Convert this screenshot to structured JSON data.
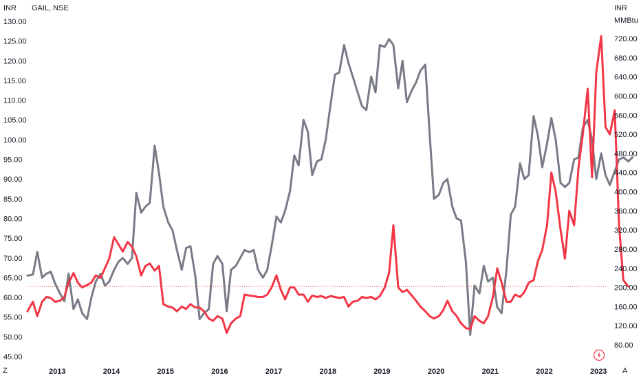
{
  "chart_data": {
    "type": "line",
    "title": "GAIL, NSE",
    "left_axis": {
      "label": "INR",
      "ylim": [
        45,
        130
      ],
      "ticks": [
        "130.00",
        "125.00",
        "120.00",
        "115.00",
        "110.00",
        "105.00",
        "100.00",
        "95.00",
        "90.00",
        "85.00",
        "80.00",
        "75.00",
        "70.00",
        "65.00",
        "60.00",
        "55.00",
        "50.00",
        "45.00"
      ]
    },
    "right_axis": {
      "label": "INR",
      "sublabel": "MMBtu",
      "ylim": [
        40,
        790
      ],
      "ticks": [
        "720.00",
        "680.00",
        "640.00",
        "600.00",
        "560.00",
        "520.00",
        "480.00",
        "440.00",
        "400.00",
        "360.00",
        "320.00",
        "280.00",
        "240.00",
        "200.00",
        "160.00",
        "120.00",
        "80.00"
      ]
    },
    "x_axis": {
      "ticks": [
        "2013",
        "2014",
        "2015",
        "2016",
        "2017",
        "2018",
        "2019",
        "2020",
        "2021",
        "2022",
        "2023"
      ],
      "start": 2012.45,
      "end": 2023.15
    },
    "series": [
      {
        "axis": "left",
        "color": "#787b86",
        "points": [
          [
            2012.45,
            65.5
          ],
          [
            2012.55,
            65.8
          ],
          [
            2012.63,
            71.5
          ],
          [
            2012.72,
            65.0
          ],
          [
            2012.8,
            66.0
          ],
          [
            2012.88,
            66.5
          ],
          [
            2012.96,
            63.5
          ],
          [
            2013.05,
            61.0
          ],
          [
            2013.13,
            59.0
          ],
          [
            2013.21,
            66.0
          ],
          [
            2013.3,
            57.0
          ],
          [
            2013.38,
            59.5
          ],
          [
            2013.46,
            56.0
          ],
          [
            2013.55,
            54.5
          ],
          [
            2013.63,
            60.0
          ],
          [
            2013.71,
            64.0
          ],
          [
            2013.8,
            66.0
          ],
          [
            2013.88,
            63.0
          ],
          [
            2013.96,
            64.0
          ],
          [
            2014.05,
            67.0
          ],
          [
            2014.13,
            69.0
          ],
          [
            2014.21,
            70.0
          ],
          [
            2014.3,
            68.5
          ],
          [
            2014.38,
            70.0
          ],
          [
            2014.46,
            86.5
          ],
          [
            2014.55,
            81.5
          ],
          [
            2014.63,
            83.0
          ],
          [
            2014.71,
            84.0
          ],
          [
            2014.8,
            98.5
          ],
          [
            2014.88,
            91.5
          ],
          [
            2014.96,
            83.0
          ],
          [
            2015.05,
            79.0
          ],
          [
            2015.13,
            77.0
          ],
          [
            2015.21,
            72.0
          ],
          [
            2015.3,
            67.0
          ],
          [
            2015.38,
            72.5
          ],
          [
            2015.46,
            73.0
          ],
          [
            2015.55,
            65.5
          ],
          [
            2015.63,
            54.5
          ],
          [
            2015.71,
            56.0
          ],
          [
            2015.8,
            57.0
          ],
          [
            2015.88,
            68.5
          ],
          [
            2015.96,
            70.5
          ],
          [
            2016.05,
            68.5
          ],
          [
            2016.13,
            56.5
          ],
          [
            2016.21,
            67.0
          ],
          [
            2016.3,
            68.0
          ],
          [
            2016.38,
            70.0
          ],
          [
            2016.46,
            72.0
          ],
          [
            2016.55,
            71.5
          ],
          [
            2016.63,
            72.0
          ],
          [
            2016.71,
            67.0
          ],
          [
            2016.8,
            65.0
          ],
          [
            2016.88,
            67.0
          ],
          [
            2016.96,
            73.0
          ],
          [
            2017.05,
            80.5
          ],
          [
            2017.13,
            79.0
          ],
          [
            2017.21,
            82.0
          ],
          [
            2017.3,
            87.0
          ],
          [
            2017.38,
            96.0
          ],
          [
            2017.46,
            93.5
          ],
          [
            2017.55,
            105.0
          ],
          [
            2017.63,
            102.0
          ],
          [
            2017.71,
            91.0
          ],
          [
            2017.8,
            94.5
          ],
          [
            2017.88,
            95.0
          ],
          [
            2017.96,
            100.0
          ],
          [
            2018.05,
            109.0
          ],
          [
            2018.13,
            116.5
          ],
          [
            2018.21,
            117.0
          ],
          [
            2018.3,
            124.0
          ],
          [
            2018.38,
            119.5
          ],
          [
            2018.46,
            116.0
          ],
          [
            2018.55,
            112.0
          ],
          [
            2018.63,
            108.5
          ],
          [
            2018.71,
            107.5
          ],
          [
            2018.8,
            116.0
          ],
          [
            2018.88,
            112.0
          ],
          [
            2018.96,
            124.0
          ],
          [
            2019.05,
            123.5
          ],
          [
            2019.13,
            125.5
          ],
          [
            2019.21,
            124.0
          ],
          [
            2019.3,
            113.0
          ],
          [
            2019.38,
            120.0
          ],
          [
            2019.46,
            109.5
          ],
          [
            2019.55,
            112.5
          ],
          [
            2019.63,
            114.5
          ],
          [
            2019.71,
            117.5
          ],
          [
            2019.8,
            119.0
          ],
          [
            2019.88,
            101.5
          ],
          [
            2019.96,
            85.0
          ],
          [
            2020.05,
            86.0
          ],
          [
            2020.13,
            89.0
          ],
          [
            2020.21,
            90.0
          ],
          [
            2020.3,
            83.0
          ],
          [
            2020.38,
            80.0
          ],
          [
            2020.46,
            79.5
          ],
          [
            2020.55,
            69.0
          ],
          [
            2020.63,
            50.5
          ],
          [
            2020.71,
            63.0
          ],
          [
            2020.8,
            61.0
          ],
          [
            2020.88,
            68.0
          ],
          [
            2020.96,
            64.0
          ],
          [
            2021.05,
            65.0
          ],
          [
            2021.13,
            57.5
          ],
          [
            2021.21,
            56.0
          ],
          [
            2021.3,
            67.0
          ],
          [
            2021.38,
            81.0
          ],
          [
            2021.46,
            83.0
          ],
          [
            2021.55,
            94.0
          ],
          [
            2021.63,
            90.0
          ],
          [
            2021.71,
            91.0
          ],
          [
            2021.8,
            106.0
          ],
          [
            2021.88,
            101.0
          ],
          [
            2021.96,
            93.0
          ],
          [
            2022.05,
            99.0
          ],
          [
            2022.13,
            105.5
          ],
          [
            2022.21,
            100.0
          ],
          [
            2022.3,
            89.0
          ],
          [
            2022.38,
            88.0
          ],
          [
            2022.46,
            89.0
          ],
          [
            2022.55,
            95.0
          ],
          [
            2022.63,
            95.5
          ],
          [
            2022.71,
            103.0
          ],
          [
            2022.8,
            105.0
          ],
          [
            2022.88,
            100.0
          ],
          [
            2022.96,
            90.0
          ],
          [
            2023.05,
            96.5
          ],
          [
            2023.13,
            91.0
          ],
          [
            2023.21,
            88.5
          ],
          [
            2023.3,
            92.0
          ],
          [
            2023.38,
            95.0
          ],
          [
            2023.46,
            95.5
          ],
          [
            2023.55,
            94.5
          ],
          [
            2023.63,
            95.5
          ]
        ]
      },
      {
        "axis": "right",
        "color": "#f23645",
        "points": [
          [
            2012.45,
            150
          ],
          [
            2012.55,
            170
          ],
          [
            2012.63,
            140
          ],
          [
            2012.72,
            170
          ],
          [
            2012.8,
            180
          ],
          [
            2012.88,
            178
          ],
          [
            2012.96,
            170
          ],
          [
            2013.05,
            172
          ],
          [
            2013.13,
            180
          ],
          [
            2013.21,
            210
          ],
          [
            2013.3,
            230
          ],
          [
            2013.38,
            210
          ],
          [
            2013.46,
            200
          ],
          [
            2013.55,
            205
          ],
          [
            2013.63,
            210
          ],
          [
            2013.71,
            225
          ],
          [
            2013.8,
            220
          ],
          [
            2013.88,
            240
          ],
          [
            2013.96,
            260
          ],
          [
            2014.05,
            305
          ],
          [
            2014.13,
            290
          ],
          [
            2014.21,
            275
          ],
          [
            2014.3,
            295
          ],
          [
            2014.38,
            285
          ],
          [
            2014.46,
            265
          ],
          [
            2014.55,
            225
          ],
          [
            2014.63,
            245
          ],
          [
            2014.71,
            250
          ],
          [
            2014.8,
            235
          ],
          [
            2014.88,
            245
          ],
          [
            2014.96,
            165
          ],
          [
            2015.05,
            160
          ],
          [
            2015.13,
            158
          ],
          [
            2015.21,
            150
          ],
          [
            2015.3,
            160
          ],
          [
            2015.38,
            155
          ],
          [
            2015.46,
            165
          ],
          [
            2015.55,
            158
          ],
          [
            2015.63,
            158
          ],
          [
            2015.71,
            150
          ],
          [
            2015.8,
            135
          ],
          [
            2015.88,
            130
          ],
          [
            2015.96,
            140
          ],
          [
            2016.05,
            135
          ],
          [
            2016.13,
            105
          ],
          [
            2016.21,
            125
          ],
          [
            2016.3,
            135
          ],
          [
            2016.38,
            140
          ],
          [
            2016.46,
            185
          ],
          [
            2016.55,
            183
          ],
          [
            2016.63,
            182
          ],
          [
            2016.71,
            180
          ],
          [
            2016.8,
            180
          ],
          [
            2016.88,
            185
          ],
          [
            2016.96,
            200
          ],
          [
            2017.05,
            225
          ],
          [
            2017.13,
            195
          ],
          [
            2017.21,
            175
          ],
          [
            2017.3,
            200
          ],
          [
            2017.38,
            200
          ],
          [
            2017.46,
            185
          ],
          [
            2017.55,
            185
          ],
          [
            2017.63,
            170
          ],
          [
            2017.71,
            183
          ],
          [
            2017.8,
            180
          ],
          [
            2017.88,
            182
          ],
          [
            2017.96,
            178
          ],
          [
            2018.05,
            182
          ],
          [
            2018.13,
            180
          ],
          [
            2018.21,
            178
          ],
          [
            2018.3,
            180
          ],
          [
            2018.38,
            160
          ],
          [
            2018.46,
            170
          ],
          [
            2018.55,
            172
          ],
          [
            2018.63,
            180
          ],
          [
            2018.71,
            178
          ],
          [
            2018.8,
            180
          ],
          [
            2018.88,
            175
          ],
          [
            2018.96,
            182
          ],
          [
            2019.05,
            200
          ],
          [
            2019.13,
            230
          ],
          [
            2019.21,
            330
          ],
          [
            2019.3,
            200
          ],
          [
            2019.38,
            190
          ],
          [
            2019.46,
            195
          ],
          [
            2019.55,
            183
          ],
          [
            2019.63,
            172
          ],
          [
            2019.71,
            160
          ],
          [
            2019.8,
            150
          ],
          [
            2019.88,
            140
          ],
          [
            2019.96,
            135
          ],
          [
            2020.05,
            140
          ],
          [
            2020.13,
            152
          ],
          [
            2020.21,
            172
          ],
          [
            2020.3,
            150
          ],
          [
            2020.38,
            140
          ],
          [
            2020.46,
            125
          ],
          [
            2020.55,
            115
          ],
          [
            2020.63,
            113
          ],
          [
            2020.71,
            140
          ],
          [
            2020.8,
            130
          ],
          [
            2020.88,
            125
          ],
          [
            2020.96,
            140
          ],
          [
            2021.05,
            180
          ],
          [
            2021.13,
            240
          ],
          [
            2021.21,
            210
          ],
          [
            2021.3,
            170
          ],
          [
            2021.38,
            170
          ],
          [
            2021.46,
            185
          ],
          [
            2021.55,
            180
          ],
          [
            2021.63,
            190
          ],
          [
            2021.71,
            210
          ],
          [
            2021.8,
            215
          ],
          [
            2021.88,
            255
          ],
          [
            2021.96,
            278
          ],
          [
            2022.05,
            330
          ],
          [
            2022.13,
            440
          ],
          [
            2022.21,
            400
          ],
          [
            2022.3,
            320
          ],
          [
            2022.38,
            260
          ],
          [
            2022.46,
            360
          ],
          [
            2022.55,
            330
          ],
          [
            2022.63,
            450
          ],
          [
            2022.71,
            520
          ],
          [
            2022.8,
            615
          ],
          [
            2022.88,
            430
          ],
          [
            2022.96,
            650
          ],
          [
            2023.05,
            725
          ],
          [
            2023.13,
            535
          ],
          [
            2023.21,
            520
          ],
          [
            2023.3,
            570
          ],
          [
            2023.38,
            330
          ],
          [
            2023.46,
            215
          ],
          [
            2023.55,
            202
          ]
        ]
      }
    ],
    "reference_line": {
      "axis": "right",
      "value": 202,
      "color": "#f23645",
      "style": "dotted"
    },
    "corner_labels": {
      "bottom_left": "Z",
      "bottom_right": "A"
    },
    "marker_icon": "lightning-icon"
  }
}
